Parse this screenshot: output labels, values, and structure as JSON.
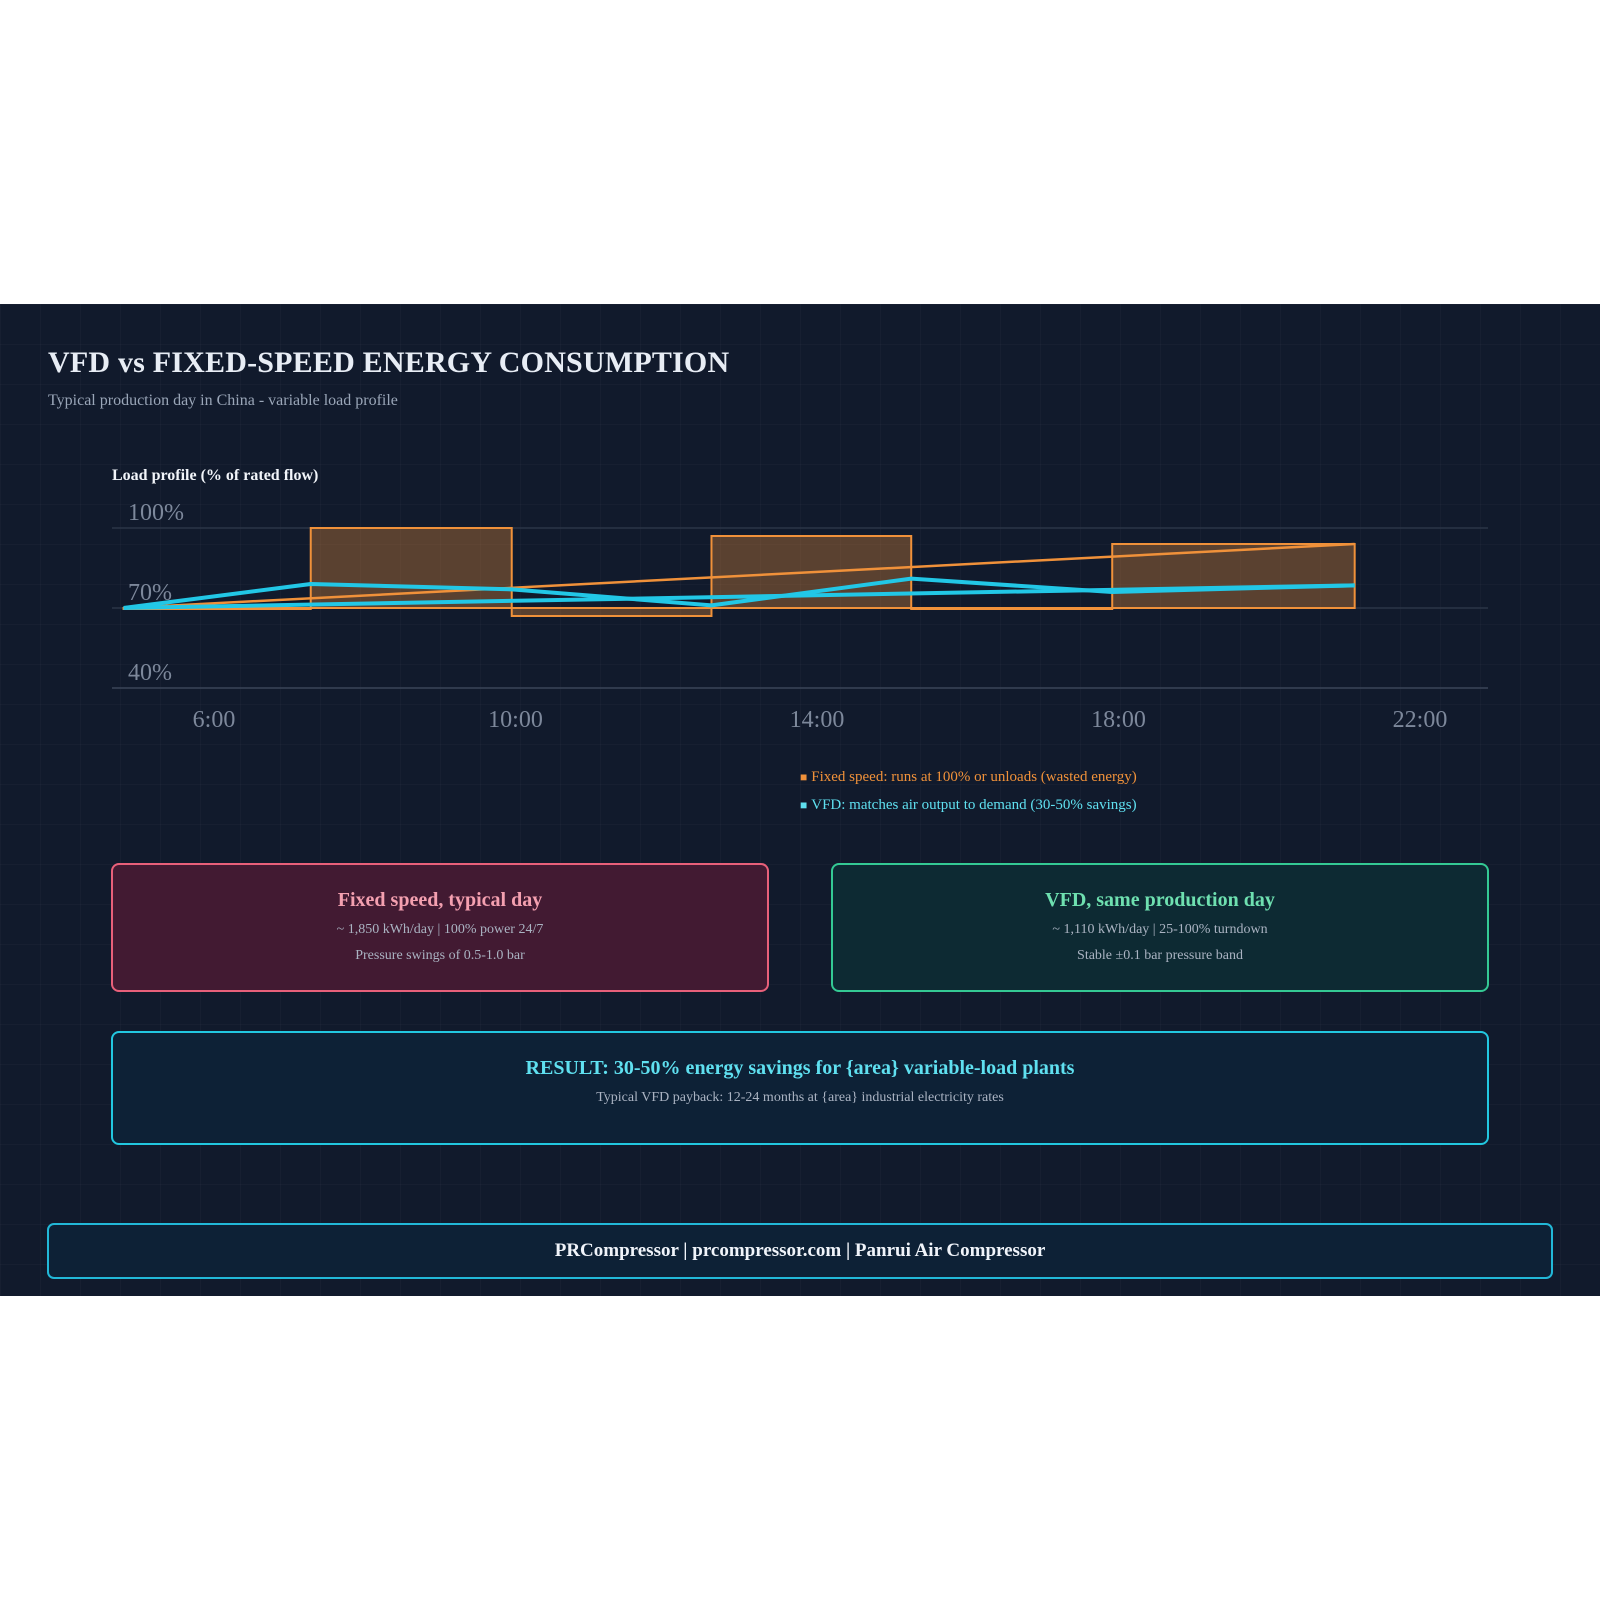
{
  "header": {
    "title": "VFD vs FIXED-SPEED ENERGY CONSUMPTION",
    "subtitle": "Typical production day in China - variable load profile"
  },
  "colors": {
    "background": "#111a2c",
    "fixed_speed": "#f0913a",
    "vfd": "#22c7e6",
    "fixed_card": "#e8607a",
    "vfd_card": "#34c994",
    "result_card": "#22c7e0"
  },
  "chart_data": {
    "type": "line",
    "title": "Load profile (% of rated flow)",
    "ylabel": "",
    "xlabel": "",
    "y_ticks": [
      "100%",
      "70%",
      "40%"
    ],
    "x_ticks": [
      "6:00",
      "10:00",
      "14:00",
      "18:00",
      "22:00"
    ],
    "ylim": [
      40,
      100
    ],
    "grid": true,
    "legend_placement": "bottom-right",
    "series": [
      {
        "name": "Fixed speed: runs at 100% or unloads (wasted energy)",
        "color": "#f0913a",
        "style": "step-filled",
        "step_blocks": [
          {
            "from": "4:48",
            "to": "7:17",
            "level": 70
          },
          {
            "from": "7:17",
            "to": "9:57",
            "level": 100
          },
          {
            "from": "9:57",
            "to": "12:36",
            "level": 67
          },
          {
            "from": "12:36",
            "to": "15:15",
            "level": 97
          },
          {
            "from": "15:15",
            "to": "17:55",
            "level": 70
          },
          {
            "from": "17:55",
            "to": "21:08",
            "level": 94
          }
        ],
        "trend": [
          {
            "x": "4:48",
            "y": 70
          },
          {
            "x": "21:08",
            "y": 94
          }
        ]
      },
      {
        "name": "VFD: matches air output to demand (30-50% savings)",
        "color": "#22c7e6",
        "style": "line",
        "points": [
          {
            "x": "4:48",
            "y": 70
          },
          {
            "x": "7:17",
            "y": 79
          },
          {
            "x": "9:57",
            "y": 77
          },
          {
            "x": "12:36",
            "y": 71
          },
          {
            "x": "15:15",
            "y": 81
          },
          {
            "x": "17:55",
            "y": 76
          },
          {
            "x": "21:08",
            "y": 78.5
          }
        ],
        "trend": [
          {
            "x": "4:48",
            "y": 70
          },
          {
            "x": "21:08",
            "y": 78.5
          }
        ]
      }
    ]
  },
  "cards": {
    "fixed": {
      "title": "Fixed speed, typical day",
      "line1": "~ 1,850 kWh/day | 100% power 24/7",
      "line2": "Pressure swings of 0.5-1.0 bar"
    },
    "vfd": {
      "title": "VFD, same production day",
      "line1": "~ 1,110 kWh/day | 25-100% turndown",
      "line2": "Stable ±0.1 bar pressure band"
    },
    "result": {
      "title": "RESULT: 30-50% energy savings for {area} variable-load plants",
      "line1": "Typical VFD payback: 12-24 months at {area} industrial electricity rates"
    }
  },
  "footer": {
    "text": "PRCompressor | prcompressor.com | Panrui Air Compressor"
  }
}
